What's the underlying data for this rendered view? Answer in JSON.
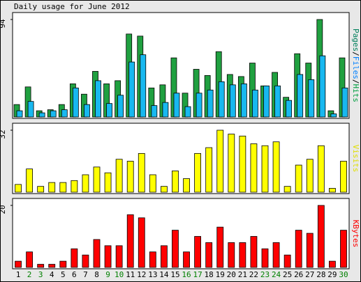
{
  "chart_data": [
    {
      "type": "bar",
      "title": "Daily usage for June 2012",
      "y_label_parts": [
        {
          "text": "Pages",
          "color": "#00805c"
        },
        {
          "text": "/",
          "color": "#000000"
        },
        {
          "text": "Files",
          "color": "#0080ff"
        },
        {
          "text": "/",
          "color": "#000000"
        },
        {
          "text": "Hits",
          "color": "#00a040"
        }
      ],
      "ylim": [
        0,
        94
      ],
      "yticks": [
        94
      ],
      "series": [
        {
          "name": "Hits",
          "color": "#20a040",
          "values": [
            12,
            29,
            6,
            7,
            12,
            32,
            22,
            44,
            32,
            35,
            80,
            78,
            28,
            31,
            57,
            23,
            46,
            40,
            63,
            41,
            39,
            52,
            30,
            43,
            19,
            61,
            52,
            94,
            6,
            57
          ]
        },
        {
          "name": "Files",
          "color": "#18b8f0",
          "values": [
            6,
            15,
            4,
            6,
            7,
            28,
            12,
            35,
            13,
            21,
            53,
            60,
            11,
            14,
            23,
            10,
            23,
            26,
            34,
            31,
            32,
            26,
            30,
            30,
            16,
            41,
            36,
            59,
            3,
            28
          ]
        }
      ]
    },
    {
      "type": "bar",
      "y_label": "Visits",
      "y_label_color": "#e0e000",
      "ylim": [
        0,
        32
      ],
      "yticks": [
        32
      ],
      "series": [
        {
          "name": "Visits",
          "color": "#ffff00",
          "values": [
            4,
            12,
            3,
            5,
            5,
            6,
            9,
            13,
            10,
            17,
            16,
            20,
            9,
            3,
            11,
            7,
            20,
            23,
            32,
            30,
            29,
            25,
            24,
            26,
            3,
            14,
            17,
            24,
            2,
            16
          ]
        }
      ]
    },
    {
      "type": "bar",
      "y_label": "KBytes",
      "y_label_color": "#ff0000",
      "ylim": [
        0,
        20
      ],
      "yticks": [
        20
      ],
      "series": [
        {
          "name": "KBytes",
          "color": "#ff0000",
          "values": [
            2,
            5,
            1,
            1,
            2,
            6,
            4,
            9,
            7,
            7,
            17,
            16,
            5,
            7,
            12,
            5,
            10,
            8,
            13,
            8,
            8,
            10,
            6,
            8,
            4,
            12,
            11,
            20,
            2,
            12
          ]
        }
      ],
      "categories": [
        "1",
        "2",
        "3",
        "4",
        "5",
        "6",
        "7",
        "8",
        "9",
        "10",
        "11",
        "12",
        "13",
        "14",
        "15",
        "16",
        "17",
        "18",
        "19",
        "20",
        "21",
        "22",
        "23",
        "24",
        "25",
        "26",
        "27",
        "28",
        "29",
        "30"
      ],
      "category_colors": [
        "#000000",
        "#008000",
        "#008000",
        "#000000",
        "#000000",
        "#000000",
        "#000000",
        "#000000",
        "#008000",
        "#008000",
        "#000000",
        "#000000",
        "#000000",
        "#000000",
        "#000000",
        "#008000",
        "#008000",
        "#000000",
        "#000000",
        "#000000",
        "#000000",
        "#000000",
        "#008000",
        "#008000",
        "#000000",
        "#000000",
        "#000000",
        "#000000",
        "#000000",
        "#008000"
      ]
    }
  ]
}
